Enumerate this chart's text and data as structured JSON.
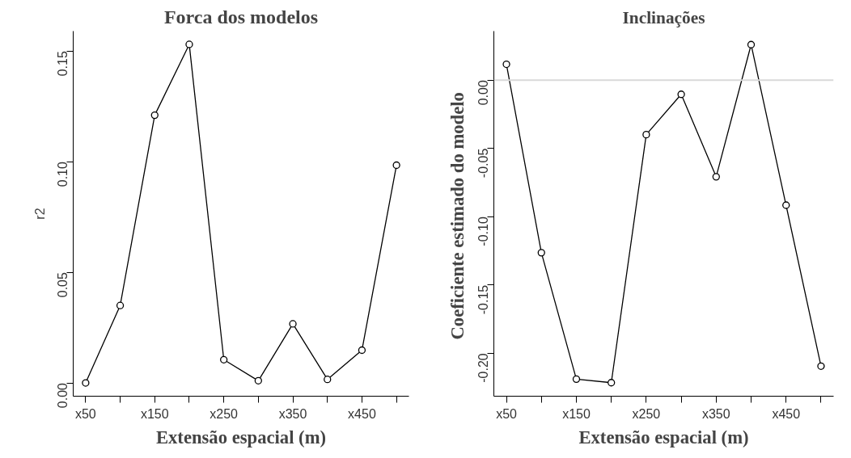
{
  "chart_data": [
    {
      "type": "line",
      "title": "Forca dos modelos",
      "xlabel": "Extensão espacial (m)",
      "ylabel": "r2",
      "categories": [
        "x50",
        null,
        "x150",
        null,
        "x250",
        null,
        "x350",
        null,
        "x450",
        null
      ],
      "values": [
        0.0,
        0.035,
        0.121,
        0.153,
        0.0105,
        0.001,
        0.0267,
        0.0016,
        0.0148,
        0.0984
      ],
      "color": "#000000",
      "ylim": [
        -0.006,
        0.159
      ],
      "yticks": [
        {
          "value": 0,
          "label": "0.00"
        },
        {
          "value": 0.05,
          "label": "0.05"
        },
        {
          "value": 0.1,
          "label": "0.10"
        },
        {
          "value": 0.15,
          "label": "0.15"
        }
      ],
      "marker": "circle",
      "grid": false
    },
    {
      "type": "line",
      "title": "Inclinações",
      "xlabel": "Extensão espacial (m)",
      "ylabel": "Coeficiente estimado  do modelo",
      "categories": [
        "x50",
        null,
        "x150",
        null,
        "x250",
        null,
        "x350",
        null,
        "x450",
        null
      ],
      "values": [
        0.0116,
        -0.1264,
        -0.219,
        -0.2216,
        -0.0399,
        -0.0104,
        -0.0708,
        0.026,
        -0.0916,
        -0.2095
      ],
      "color": "#000000",
      "ylim": [
        -0.2315,
        0.0359
      ],
      "yticks": [
        {
          "value": -0.2,
          "label": "-0.20"
        },
        {
          "value": -0.15,
          "label": "-0.15"
        },
        {
          "value": -0.1,
          "label": "-0.10"
        },
        {
          "value": -0.05,
          "label": "-0.05"
        },
        {
          "value": 0,
          "label": "0.00"
        }
      ],
      "marker": "circle",
      "grid": false,
      "ref_lines": [
        {
          "axis": "y",
          "value": 0,
          "color": "#d9d9d9"
        }
      ]
    }
  ]
}
